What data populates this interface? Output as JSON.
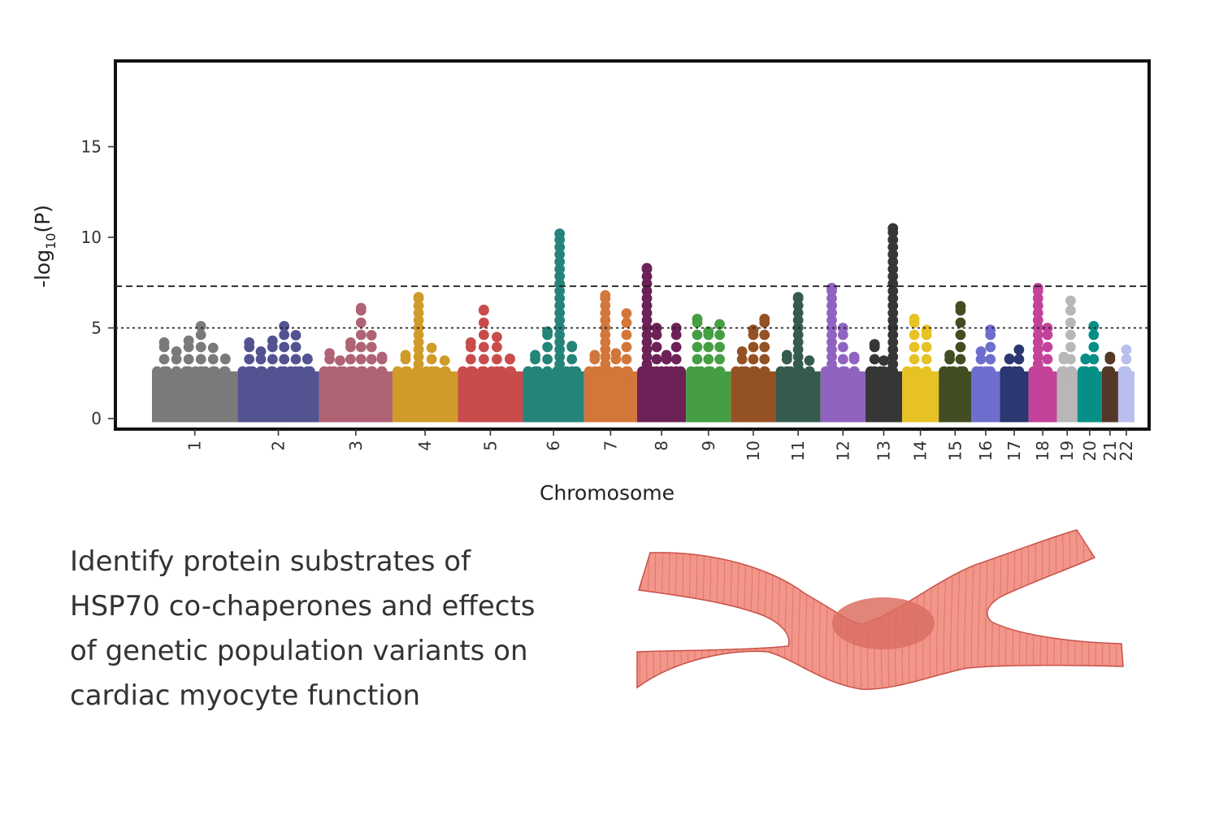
{
  "chart_data": {
    "type": "scatter",
    "subtype": "manhattan",
    "xlabel": "Chromosome",
    "ylabel": "-log10(P)",
    "ylim": [
      0,
      19
    ],
    "yticks": [
      0,
      5,
      10,
      15
    ],
    "threshold_lines": [
      {
        "value": 7.3,
        "style": "dashed"
      },
      {
        "value": 5.0,
        "style": "dotted"
      }
    ],
    "legend": "none",
    "grid": false,
    "chromosomes": [
      {
        "label": "1",
        "color": "#7a7a7a",
        "peaks": [
          4.2,
          3.7,
          4.3,
          5.1,
          3.9,
          3.3
        ]
      },
      {
        "label": "2",
        "color": "#525390",
        "peaks": [
          4.2,
          3.7,
          4.3,
          5.1,
          4.6,
          3.3
        ]
      },
      {
        "label": "3",
        "color": "#b06375",
        "peaks": [
          3.6,
          3.2,
          4.2,
          6.1,
          4.6,
          3.4
        ]
      },
      {
        "label": "4",
        "color": "#d09b28",
        "peaks": [
          3.5,
          6.7,
          3.9,
          3.2
        ]
      },
      {
        "label": "5",
        "color": "#c94c4c",
        "peaks": [
          4.2,
          6.0,
          4.5,
          3.3
        ]
      },
      {
        "label": "6",
        "color": "#25847a",
        "peaks": [
          3.5,
          4.8,
          10.2,
          4.0
        ]
      },
      {
        "label": "7",
        "color": "#d3763a",
        "peaks": [
          3.5,
          6.8,
          3.6,
          5.8
        ]
      },
      {
        "label": "8",
        "color": "#6c2157",
        "peaks": [
          8.3,
          5.0,
          3.5,
          5.0
        ]
      },
      {
        "label": "9",
        "color": "#459e43",
        "peaks": [
          5.5,
          4.8,
          5.2
        ]
      },
      {
        "label": "10",
        "color": "#945123",
        "peaks": [
          3.7,
          4.9,
          5.5
        ]
      },
      {
        "label": "11",
        "color": "#355b4f",
        "peaks": [
          3.5,
          6.7,
          3.2
        ]
      },
      {
        "label": "12",
        "color": "#9163c0",
        "peaks": [
          7.2,
          5.0,
          3.4
        ]
      },
      {
        "label": "13",
        "color": "#363636",
        "peaks": [
          4.1,
          3.2,
          10.5
        ]
      },
      {
        "label": "14",
        "color": "#e7c224",
        "peaks": [
          5.5,
          4.9
        ]
      },
      {
        "label": "15",
        "color": "#424d21",
        "peaks": [
          3.5,
          6.2
        ]
      },
      {
        "label": "16",
        "color": "#6e6ece",
        "peaks": [
          3.7,
          4.9
        ]
      },
      {
        "label": "17",
        "color": "#2a3770",
        "peaks": [
          3.3,
          3.8
        ]
      },
      {
        "label": "18",
        "color": "#c3429a",
        "peaks": [
          7.2,
          5.0
        ]
      },
      {
        "label": "19",
        "color": "#b7b7b7",
        "peaks": [
          3.4,
          6.5
        ]
      },
      {
        "label": "20",
        "color": "#068f86",
        "peaks": [
          3.3,
          5.1
        ]
      },
      {
        "label": "21",
        "color": "#553727",
        "peaks": [
          3.4
        ]
      },
      {
        "label": "22",
        "color": "#b8bfec",
        "peaks": [
          3.8
        ]
      }
    ]
  },
  "caption": {
    "lines": [
      "Identify protein substrates of",
      "HSP70 co-chaperones and effects",
      "of genetic population variants on",
      "cardiac myocyte function"
    ]
  },
  "illustration": {
    "color": "#f2968a",
    "stroke": "#c95149",
    "nucleus_color": "#dc6e62",
    "icon": "cardiac-myocyte-icon"
  }
}
